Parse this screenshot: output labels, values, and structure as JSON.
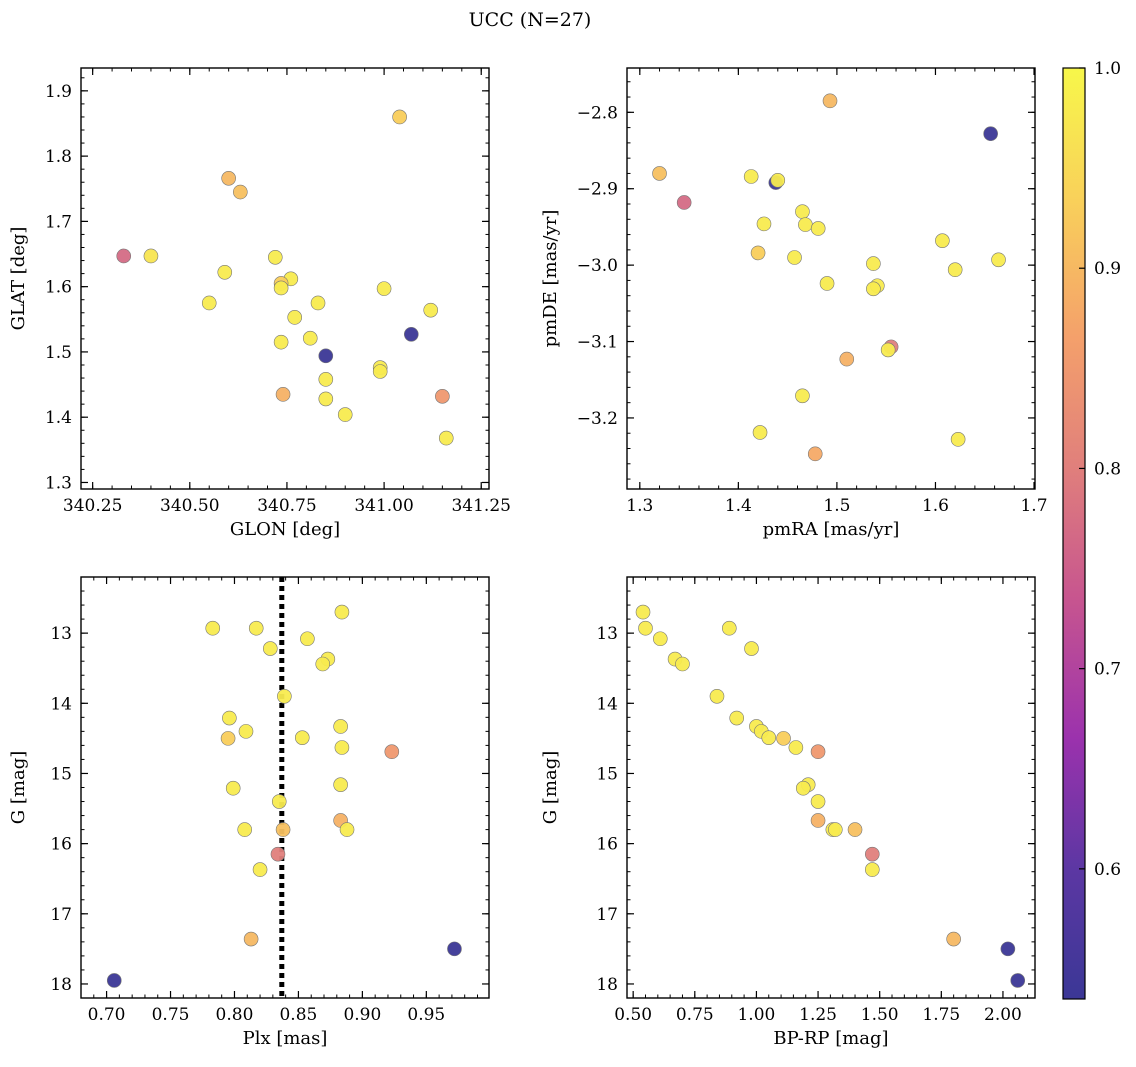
{
  "figure_title": "UCC (N=27)",
  "colorbar": {
    "range": [
      0.535,
      1.0
    ],
    "ticks": [
      0.6,
      0.7,
      0.8,
      0.9,
      1.0
    ],
    "tick_labels": [
      "0.6",
      "0.7",
      "0.8",
      "0.9",
      "1.0"
    ],
    "colormap": "plasma"
  },
  "chart_data": [
    {
      "type": "scatter",
      "id": "glon-glat",
      "xlabel": "GLON [deg]",
      "ylabel": "GLAT [deg]",
      "xlim": [
        340.22,
        341.27
      ],
      "ylim": [
        1.29,
        1.935
      ],
      "xticks": [
        340.25,
        340.5,
        340.75,
        341.0,
        341.25
      ],
      "xtick_labels": [
        "340.25",
        "340.50",
        "340.75",
        "341.00",
        "341.25"
      ],
      "yticks": [
        1.3,
        1.4,
        1.5,
        1.6,
        1.7,
        1.8,
        1.9
      ],
      "ytick_labels": [
        "1.3",
        "1.4",
        "1.5",
        "1.6",
        "1.7",
        "1.8",
        "1.9"
      ],
      "y_inverted": false,
      "points": [
        {
          "x": 341.04,
          "y": 1.86,
          "p": 0.93
        },
        {
          "x": 340.6,
          "y": 1.766,
          "p": 0.9
        },
        {
          "x": 340.63,
          "y": 1.745,
          "p": 0.91
        },
        {
          "x": 340.33,
          "y": 1.647,
          "p": 0.77
        },
        {
          "x": 340.4,
          "y": 1.647,
          "p": 0.97
        },
        {
          "x": 340.72,
          "y": 1.645,
          "p": 0.98
        },
        {
          "x": 340.59,
          "y": 1.622,
          "p": 0.98
        },
        {
          "x": 340.76,
          "y": 1.612,
          "p": 0.98
        },
        {
          "x": 340.735,
          "y": 1.605,
          "p": 0.93
        },
        {
          "x": 340.735,
          "y": 1.598,
          "p": 0.98
        },
        {
          "x": 341.0,
          "y": 1.597,
          "p": 0.98
        },
        {
          "x": 340.55,
          "y": 1.575,
          "p": 0.98
        },
        {
          "x": 340.83,
          "y": 1.575,
          "p": 0.98
        },
        {
          "x": 341.12,
          "y": 1.564,
          "p": 0.98
        },
        {
          "x": 340.77,
          "y": 1.553,
          "p": 0.98
        },
        {
          "x": 341.07,
          "y": 1.527,
          "p": 0.535
        },
        {
          "x": 340.81,
          "y": 1.521,
          "p": 0.98
        },
        {
          "x": 340.735,
          "y": 1.515,
          "p": 0.98
        },
        {
          "x": 340.85,
          "y": 1.494,
          "p": 0.535
        },
        {
          "x": 340.99,
          "y": 1.476,
          "p": 0.98
        },
        {
          "x": 340.99,
          "y": 1.47,
          "p": 0.98
        },
        {
          "x": 340.85,
          "y": 1.458,
          "p": 0.98
        },
        {
          "x": 340.74,
          "y": 1.435,
          "p": 0.89
        },
        {
          "x": 341.15,
          "y": 1.432,
          "p": 0.85
        },
        {
          "x": 340.85,
          "y": 1.428,
          "p": 0.98
        },
        {
          "x": 340.9,
          "y": 1.404,
          "p": 0.98
        },
        {
          "x": 341.16,
          "y": 1.368,
          "p": 0.98
        }
      ]
    },
    {
      "type": "scatter",
      "id": "pmra-pmde",
      "xlabel": "pmRA [mas/yr]",
      "ylabel": "pmDE [mas/yr]",
      "xlim": [
        1.287,
        1.701
      ],
      "ylim": [
        -3.293,
        -2.742
      ],
      "xticks": [
        1.3,
        1.4,
        1.5,
        1.6,
        1.7
      ],
      "xtick_labels": [
        "1.3",
        "1.4",
        "1.5",
        "1.6",
        "1.7"
      ],
      "yticks": [
        -3.2,
        -3.1,
        -3.0,
        -2.9,
        -2.8
      ],
      "ytick_labels": [
        "−3.2",
        "−3.1",
        "−3.0",
        "−2.9",
        "−2.8"
      ],
      "y_inverted": false,
      "points": [
        {
          "x": 1.493,
          "y": -2.785,
          "p": 0.9
        },
        {
          "x": 1.656,
          "y": -2.828,
          "p": 0.535
        },
        {
          "x": 1.32,
          "y": -2.88,
          "p": 0.91
        },
        {
          "x": 1.413,
          "y": -2.884,
          "p": 0.98
        },
        {
          "x": 1.438,
          "y": -2.892,
          "p": 0.535
        },
        {
          "x": 1.44,
          "y": -2.889,
          "p": 0.98
        },
        {
          "x": 1.345,
          "y": -2.918,
          "p": 0.77
        },
        {
          "x": 1.465,
          "y": -2.93,
          "p": 0.98
        },
        {
          "x": 1.426,
          "y": -2.946,
          "p": 0.98
        },
        {
          "x": 1.468,
          "y": -2.947,
          "p": 0.98
        },
        {
          "x": 1.481,
          "y": -2.952,
          "p": 0.98
        },
        {
          "x": 1.607,
          "y": -2.968,
          "p": 0.98
        },
        {
          "x": 1.42,
          "y": -2.984,
          "p": 0.93
        },
        {
          "x": 1.457,
          "y": -2.99,
          "p": 0.98
        },
        {
          "x": 1.664,
          "y": -2.993,
          "p": 0.98
        },
        {
          "x": 1.537,
          "y": -2.998,
          "p": 0.98
        },
        {
          "x": 1.62,
          "y": -3.006,
          "p": 0.98
        },
        {
          "x": 1.49,
          "y": -3.024,
          "p": 0.98
        },
        {
          "x": 1.541,
          "y": -3.027,
          "p": 0.98
        },
        {
          "x": 1.537,
          "y": -3.031,
          "p": 0.98
        },
        {
          "x": 1.555,
          "y": -3.107,
          "p": 0.8
        },
        {
          "x": 1.552,
          "y": -3.111,
          "p": 0.98
        },
        {
          "x": 1.51,
          "y": -3.123,
          "p": 0.89
        },
        {
          "x": 1.465,
          "y": -3.171,
          "p": 0.98
        },
        {
          "x": 1.422,
          "y": -3.219,
          "p": 0.98
        },
        {
          "x": 1.623,
          "y": -3.228,
          "p": 0.98
        },
        {
          "x": 1.478,
          "y": -3.247,
          "p": 0.88
        }
      ]
    },
    {
      "type": "scatter",
      "id": "plx-g",
      "xlabel": "Plx [mas]",
      "ylabel": "G [mag]",
      "xlim": [
        0.68,
        0.999
      ],
      "ylim": [
        18.2,
        12.2
      ],
      "xticks": [
        0.7,
        0.75,
        0.8,
        0.85,
        0.9,
        0.95
      ],
      "xtick_labels": [
        "0.70",
        "0.75",
        "0.80",
        "0.85",
        "0.90",
        "0.95"
      ],
      "yticks": [
        13,
        14,
        15,
        16,
        17,
        18
      ],
      "ytick_labels": [
        "13",
        "14",
        "15",
        "16",
        "17",
        "18"
      ],
      "y_inverted": true,
      "vline": {
        "x": 0.837,
        "style": "dotted"
      },
      "points": [
        {
          "x": 0.884,
          "y": 12.7,
          "p": 0.98
        },
        {
          "x": 0.783,
          "y": 12.93,
          "p": 0.98
        },
        {
          "x": 0.817,
          "y": 12.93,
          "p": 0.98
        },
        {
          "x": 0.857,
          "y": 13.08,
          "p": 0.98
        },
        {
          "x": 0.828,
          "y": 13.22,
          "p": 0.98
        },
        {
          "x": 0.873,
          "y": 13.37,
          "p": 0.98
        },
        {
          "x": 0.869,
          "y": 13.44,
          "p": 0.98
        },
        {
          "x": 0.839,
          "y": 13.9,
          "p": 0.98
        },
        {
          "x": 0.796,
          "y": 14.21,
          "p": 0.98
        },
        {
          "x": 0.883,
          "y": 14.33,
          "p": 0.98
        },
        {
          "x": 0.809,
          "y": 14.4,
          "p": 0.98
        },
        {
          "x": 0.795,
          "y": 14.5,
          "p": 0.93
        },
        {
          "x": 0.853,
          "y": 14.49,
          "p": 0.98
        },
        {
          "x": 0.884,
          "y": 14.63,
          "p": 0.98
        },
        {
          "x": 0.923,
          "y": 14.69,
          "p": 0.85
        },
        {
          "x": 0.883,
          "y": 15.16,
          "p": 0.98
        },
        {
          "x": 0.799,
          "y": 15.21,
          "p": 0.98
        },
        {
          "x": 0.835,
          "y": 15.4,
          "p": 0.98
        },
        {
          "x": 0.883,
          "y": 15.67,
          "p": 0.89
        },
        {
          "x": 0.808,
          "y": 15.8,
          "p": 0.98
        },
        {
          "x": 0.888,
          "y": 15.8,
          "p": 0.98
        },
        {
          "x": 0.838,
          "y": 15.8,
          "p": 0.91
        },
        {
          "x": 0.834,
          "y": 16.15,
          "p": 0.8
        },
        {
          "x": 0.82,
          "y": 16.37,
          "p": 0.98
        },
        {
          "x": 0.813,
          "y": 17.36,
          "p": 0.9
        },
        {
          "x": 0.972,
          "y": 17.5,
          "p": 0.535
        },
        {
          "x": 0.706,
          "y": 17.95,
          "p": 0.535
        }
      ]
    },
    {
      "type": "scatter",
      "id": "bprp-g",
      "xlabel": "BP-RP [mag]",
      "ylabel": "G [mag]",
      "xlim": [
        0.475,
        2.13
      ],
      "ylim": [
        18.2,
        12.2
      ],
      "xticks": [
        0.5,
        0.75,
        1.0,
        1.25,
        1.5,
        1.75,
        2.0
      ],
      "xtick_labels": [
        "0.50",
        "0.75",
        "1.00",
        "1.25",
        "1.50",
        "1.75",
        "2.00"
      ],
      "yticks": [
        13,
        14,
        15,
        16,
        17,
        18
      ],
      "ytick_labels": [
        "13",
        "14",
        "15",
        "16",
        "17",
        "18"
      ],
      "y_inverted": true,
      "points": [
        {
          "x": 0.54,
          "y": 12.7,
          "p": 0.98
        },
        {
          "x": 0.55,
          "y": 12.93,
          "p": 0.98
        },
        {
          "x": 0.89,
          "y": 12.93,
          "p": 0.98
        },
        {
          "x": 0.61,
          "y": 13.08,
          "p": 0.98
        },
        {
          "x": 0.98,
          "y": 13.22,
          "p": 0.98
        },
        {
          "x": 0.67,
          "y": 13.37,
          "p": 0.98
        },
        {
          "x": 0.7,
          "y": 13.44,
          "p": 0.98
        },
        {
          "x": 0.84,
          "y": 13.9,
          "p": 0.98
        },
        {
          "x": 0.92,
          "y": 14.21,
          "p": 0.98
        },
        {
          "x": 1.0,
          "y": 14.33,
          "p": 0.98
        },
        {
          "x": 1.02,
          "y": 14.4,
          "p": 0.98
        },
        {
          "x": 1.05,
          "y": 14.49,
          "p": 0.98
        },
        {
          "x": 1.11,
          "y": 14.5,
          "p": 0.93
        },
        {
          "x": 1.16,
          "y": 14.63,
          "p": 0.98
        },
        {
          "x": 1.25,
          "y": 14.69,
          "p": 0.85
        },
        {
          "x": 1.21,
          "y": 15.16,
          "p": 0.98
        },
        {
          "x": 1.19,
          "y": 15.21,
          "p": 0.98
        },
        {
          "x": 1.25,
          "y": 15.4,
          "p": 0.98
        },
        {
          "x": 1.25,
          "y": 15.67,
          "p": 0.89
        },
        {
          "x": 1.31,
          "y": 15.8,
          "p": 0.98
        },
        {
          "x": 1.32,
          "y": 15.8,
          "p": 0.98
        },
        {
          "x": 1.4,
          "y": 15.8,
          "p": 0.91
        },
        {
          "x": 1.47,
          "y": 16.15,
          "p": 0.8
        },
        {
          "x": 1.47,
          "y": 16.37,
          "p": 0.98
        },
        {
          "x": 1.8,
          "y": 17.36,
          "p": 0.9
        },
        {
          "x": 2.02,
          "y": 17.5,
          "p": 0.535
        },
        {
          "x": 2.06,
          "y": 17.95,
          "p": 0.535
        }
      ]
    }
  ]
}
